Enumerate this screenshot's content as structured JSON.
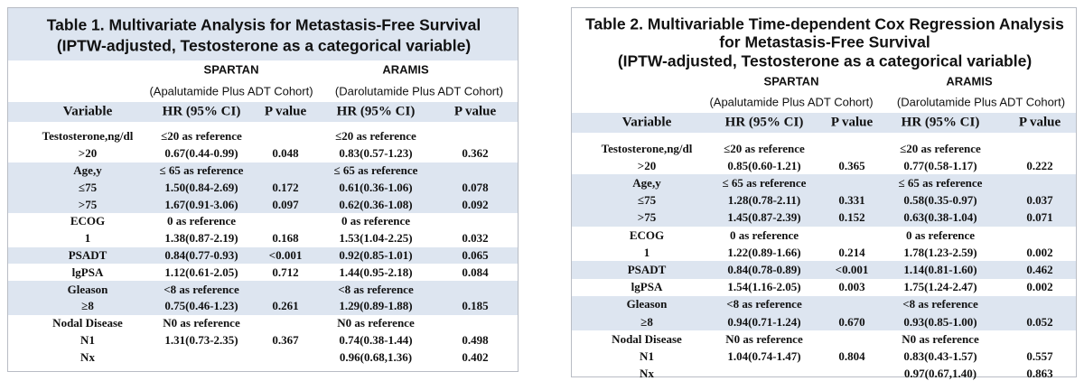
{
  "tables": [
    {
      "title": [
        "Table 1. Multivariate Analysis for Metastasis-Free Survival",
        "(IPTW-adjusted, Testosterone as a categorical variable)"
      ],
      "groups": [
        {
          "name": "SPARTAN",
          "cohort": "(Apalutamide Plus ADT Cohort)"
        },
        {
          "name": "ARAMIS",
          "cohort": "(Darolutamide Plus ADT Cohort)"
        }
      ],
      "columns": [
        "Variable",
        "HR (95% CI)",
        "P value",
        "HR (95% CI)",
        "P value"
      ],
      "rows": [
        [
          "Testosterone,ng/dl",
          "≤20 as reference",
          null,
          "≤20 as reference",
          null
        ],
        [
          ">20",
          "0.67(0.44-0.99)",
          "0.048",
          "0.83(0.57-1.23)",
          "0.362"
        ],
        [
          "Age,y",
          "≤ 65 as reference",
          null,
          "≤ 65 as reference",
          null
        ],
        [
          "≤75",
          "1.50(0.84-2.69)",
          "0.172",
          "0.61(0.36-1.06)",
          "0.078"
        ],
        [
          ">75",
          "1.67(0.91-3.06)",
          "0.097",
          "0.62(0.36-1.08)",
          "0.092"
        ],
        [
          "ECOG",
          "0 as reference",
          null,
          "0 as reference",
          null
        ],
        [
          "1",
          "1.38(0.87-2.19)",
          "0.168",
          "1.53(1.04-2.25)",
          "0.032"
        ],
        [
          "PSADT",
          "0.84(0.77-0.93)",
          "<0.001",
          "0.92(0.85-1.01)",
          "0.065"
        ],
        [
          "lgPSA",
          "1.12(0.61-2.05)",
          "0.712",
          "1.44(0.95-2.18)",
          "0.084"
        ],
        [
          "Gleason",
          "<8 as reference",
          null,
          "<8 as reference",
          null
        ],
        [
          "≥8",
          "0.75(0.46-1.23)",
          "0.261",
          "1.29(0.89-1.88)",
          "0.185"
        ],
        [
          "Nodal Disease",
          "N0 as reference",
          null,
          "N0 as reference",
          null
        ],
        [
          "N1",
          "1.31(0.73-2.35)",
          "0.367",
          "0.74(0.38-1.44)",
          "0.498"
        ],
        [
          "Nx",
          null,
          null,
          "0.96(0.68,1.36)",
          "0.402"
        ]
      ]
    },
    {
      "title": [
        "Table 2. Multivariable Time-dependent Cox Regression Analysis",
        "for Metastasis-Free Survival",
        "(IPTW-adjusted, Testosterone as a categorical variable)"
      ],
      "groups": [
        {
          "name": "SPARTAN",
          "cohort": "(Apalutamide Plus ADT Cohort)"
        },
        {
          "name": "ARAMIS",
          "cohort": "(Darolutamide Plus ADT Cohort)"
        }
      ],
      "columns": [
        "Variable",
        "HR (95% CI)",
        "P value",
        "HR (95% CI)",
        "P value"
      ],
      "rows": [
        [
          "Testosterone,ng/dl",
          "≤20 as reference",
          null,
          "≤20 as reference",
          null
        ],
        [
          ">20",
          "0.85(0.60-1.21)",
          "0.365",
          "0.77(0.58-1.17)",
          "0.222"
        ],
        [
          "Age,y",
          "≤ 65 as reference",
          null,
          "≤ 65 as reference",
          null
        ],
        [
          "≤75",
          "1.28(0.78-2.11)",
          "0.331",
          "0.58(0.35-0.97)",
          "0.037"
        ],
        [
          ">75",
          "1.45(0.87-2.39)",
          "0.152",
          "0.63(0.38-1.04)",
          "0.071"
        ],
        [
          "ECOG",
          "0 as reference",
          null,
          "0 as reference",
          null
        ],
        [
          "1",
          "1.22(0.89-1.66)",
          "0.214",
          "1.78(1.23-2.59)",
          "0.002"
        ],
        [
          "PSADT",
          "0.84(0.78-0.89)",
          "<0.001",
          "1.14(0.81-1.60)",
          "0.462"
        ],
        [
          "lgPSA",
          "1.54(1.16-2.05)",
          "0.003",
          "1.75(1.24-2.47)",
          "0.002"
        ],
        [
          "Gleason",
          "<8 as reference",
          null,
          "<8 as reference",
          null
        ],
        [
          "≥8",
          "0.94(0.71-1.24)",
          "0.670",
          "0.93(0.85-1.00)",
          "0.052"
        ],
        [
          "Nodal Disease",
          "N0 as reference",
          null,
          "N0 as reference",
          null
        ],
        [
          "N1",
          "1.04(0.74-1.47)",
          "0.804",
          "0.83(0.43-1.57)",
          "0.557"
        ],
        [
          "Nx",
          null,
          null,
          "0.97(0.67,1.40)",
          "0.863"
        ]
      ]
    }
  ]
}
